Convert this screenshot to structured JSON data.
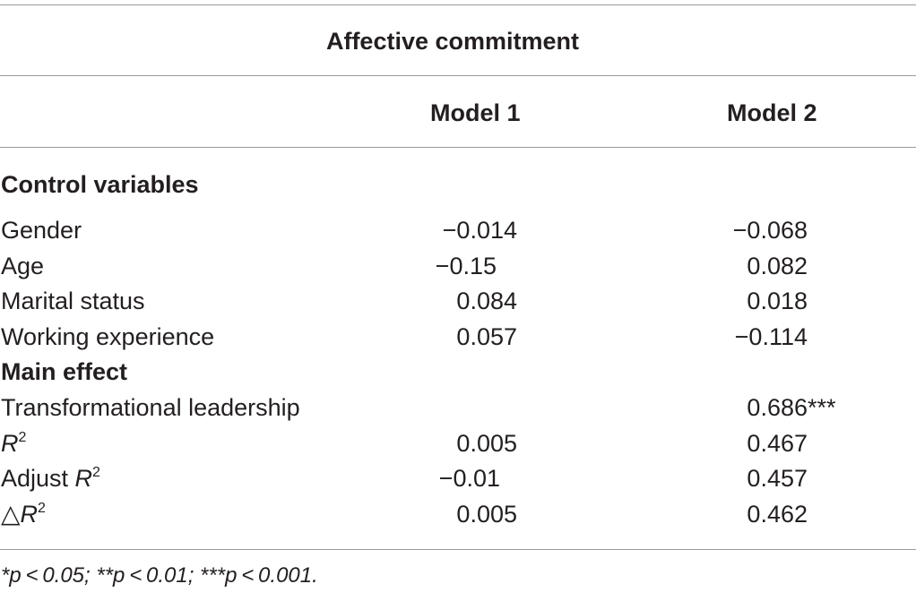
{
  "table": {
    "title": "Affective commitment",
    "columns": [
      "Model 1",
      "Model 2"
    ],
    "sections": {
      "control": "Control variables",
      "main": "Main effect"
    },
    "rows": {
      "gender": {
        "label": "Gender",
        "m1": "−0.014",
        "m2": "−0.068"
      },
      "age": {
        "label": "Age",
        "m1": "−0.15",
        "m2": "0.082"
      },
      "marital": {
        "label": "Marital status",
        "m1": "0.084",
        "m2": "0.018"
      },
      "experience": {
        "label": "Working experience",
        "m1": "0.057",
        "m2": "−0.114"
      },
      "leadership": {
        "label": "Transformational leadership",
        "m1": "",
        "m2": "0.686",
        "m2_sig": "***"
      },
      "r2": {
        "label": "R",
        "sup": "2",
        "m1": "0.005",
        "m2": "0.467"
      },
      "adj_r2": {
        "label_prefix": "Adjust ",
        "label": "R",
        "sup": "2",
        "m1": "−0.01",
        "m2": "0.457"
      },
      "delta_r2": {
        "symbol": "△",
        "label": "R",
        "sup": "2",
        "m1": "0.005",
        "m2": "0.462"
      }
    },
    "footnote": "*p < 0.05; **p < 0.01; ***p < 0.001."
  }
}
